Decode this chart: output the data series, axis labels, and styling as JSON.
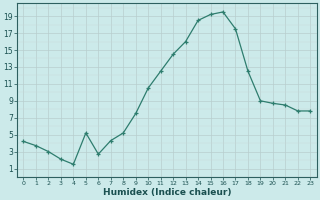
{
  "x_vals": [
    0,
    1,
    2,
    3,
    4,
    5,
    6,
    7,
    8,
    9,
    10,
    11,
    12,
    13,
    14,
    15,
    16,
    17,
    18,
    19,
    20,
    21,
    22,
    23
  ],
  "y_vals": [
    4.2,
    3.7,
    3.0,
    2.1,
    1.5,
    5.2,
    2.7,
    4.3,
    5.2,
    7.5,
    10.5,
    12.5,
    14.5,
    16.0,
    18.5,
    19.2,
    19.5,
    17.5,
    12.5,
    9.0,
    8.7,
    8.5,
    7.8,
    7.8
  ],
  "xlabel": "Humidex (Indice chaleur)",
  "line_color": "#2e7d6e",
  "bg_color": "#cceaea",
  "grid_major_color": "#b8cece",
  "grid_minor_color": "#c8dada",
  "spine_color": "#2e6060",
  "label_color": "#1a5050",
  "xlim": [
    -0.5,
    23.5
  ],
  "ylim": [
    0,
    20.5
  ],
  "yticks": [
    1,
    3,
    5,
    7,
    9,
    11,
    13,
    15,
    17,
    19
  ],
  "xticks": [
    0,
    1,
    2,
    3,
    4,
    5,
    6,
    7,
    8,
    9,
    10,
    11,
    12,
    13,
    14,
    15,
    16,
    17,
    18,
    19,
    20,
    21,
    22,
    23
  ]
}
